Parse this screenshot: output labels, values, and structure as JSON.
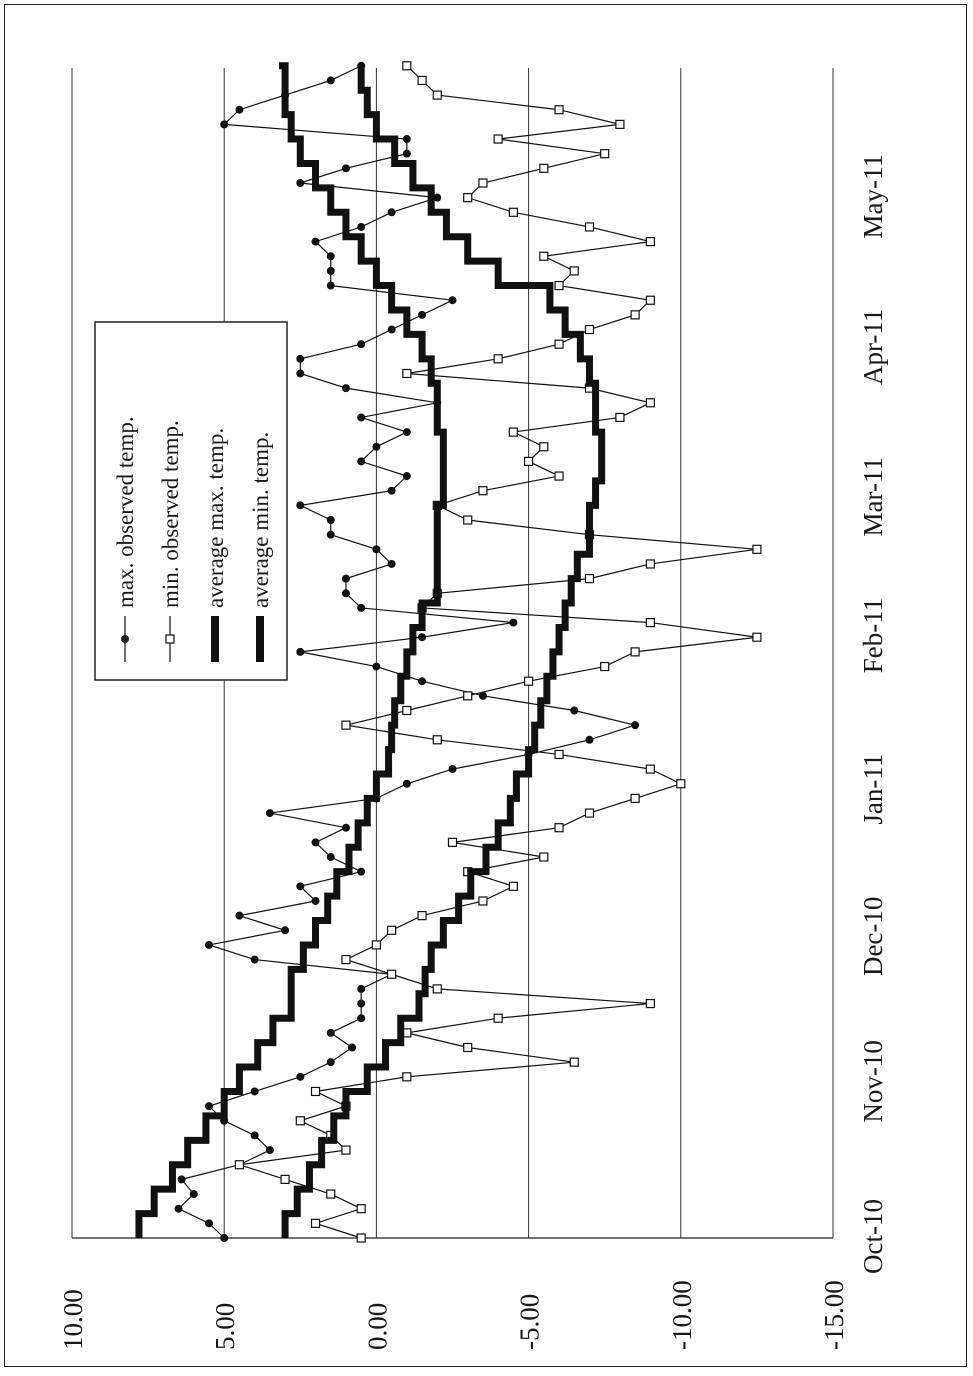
{
  "chart_data": {
    "type": "line",
    "title": "",
    "xlabel": "",
    "ylabel": "",
    "ylim": [
      -15,
      10
    ],
    "yticks": [
      10,
      5,
      0,
      -5,
      -10,
      -15
    ],
    "ytick_labels": [
      "10.00",
      "5.00",
      "0.00",
      "-5.00",
      "-10.00",
      "-15.00"
    ],
    "xlim": [
      "2010-10-01",
      "2011-05-31"
    ],
    "xticks": [
      "2010-10-01",
      "2010-11-01",
      "2010-12-01",
      "2011-01-01",
      "2011-02-01",
      "2011-03-01",
      "2011-04-01",
      "2011-05-01"
    ],
    "xtick_labels": [
      "Oct-10",
      "Nov-10",
      "Dec-10",
      "Jan-11",
      "Feb-11",
      "Mar-11",
      "Apr-11",
      "May-11"
    ],
    "grid": "horizontal",
    "legend_position": "top-left",
    "orientation": "rotated 90° counter-clockwise (date axis runs bottom to top, temperature axis runs left to right)",
    "series": [
      {
        "name": "max. observed temp.",
        "style": "thin line with filled circle markers",
        "x": [
          "2010-10-01",
          "2010-10-04",
          "2010-10-07",
          "2010-10-10",
          "2010-10-13",
          "2010-10-16",
          "2010-10-19",
          "2010-10-22",
          "2010-10-25",
          "2010-10-28",
          "2010-10-31",
          "2010-11-03",
          "2010-11-06",
          "2010-11-09",
          "2010-11-12",
          "2010-11-15",
          "2010-11-18",
          "2010-11-21",
          "2010-11-24",
          "2010-11-27",
          "2010-11-30",
          "2010-12-03",
          "2010-12-06",
          "2010-12-09",
          "2010-12-12",
          "2010-12-15",
          "2010-12-18",
          "2010-12-21",
          "2010-12-24",
          "2010-12-27",
          "2010-12-30",
          "2011-01-02",
          "2011-01-05",
          "2011-01-08",
          "2011-01-11",
          "2011-01-14",
          "2011-01-17",
          "2011-01-20",
          "2011-01-23",
          "2011-01-26",
          "2011-01-29",
          "2011-02-01",
          "2011-02-04",
          "2011-02-07",
          "2011-02-10",
          "2011-02-13",
          "2011-02-16",
          "2011-02-19",
          "2011-02-22",
          "2011-02-25",
          "2011-02-28",
          "2011-03-03",
          "2011-03-06",
          "2011-03-09",
          "2011-03-12",
          "2011-03-15",
          "2011-03-18",
          "2011-03-21",
          "2011-03-24",
          "2011-03-27",
          "2011-03-30",
          "2011-04-02",
          "2011-04-05",
          "2011-04-08",
          "2011-04-11",
          "2011-04-14",
          "2011-04-17",
          "2011-04-20",
          "2011-04-23",
          "2011-04-26",
          "2011-04-29",
          "2011-05-02",
          "2011-05-05",
          "2011-05-08",
          "2011-05-11",
          "2011-05-14",
          "2011-05-17",
          "2011-05-20",
          "2011-05-23",
          "2011-05-26",
          "2011-05-29"
        ],
        "y": [
          5.0,
          5.5,
          6.5,
          6.0,
          6.4,
          4.5,
          3.5,
          4.0,
          5.0,
          5.5,
          4.0,
          2.5,
          1.5,
          0.8,
          1.5,
          0.5,
          0.5,
          0.5,
          -0.5,
          4.0,
          5.5,
          3.0,
          4.5,
          2.0,
          2.5,
          0.5,
          1.5,
          2.0,
          1.0,
          3.5,
          0.0,
          -1.0,
          -2.5,
          -5.0,
          -7.0,
          -8.5,
          -6.5,
          -3.5,
          -1.5,
          0.0,
          2.5,
          -1.5,
          -4.5,
          0.5,
          1.0,
          1.0,
          -0.5,
          0.0,
          1.5,
          1.5,
          2.5,
          -0.5,
          -1.0,
          0.5,
          0.0,
          -1.0,
          0.5,
          -2.0,
          1.0,
          2.5,
          2.5,
          0.5,
          -0.5,
          -1.5,
          -2.5,
          1.5,
          1.5,
          1.5,
          2.0,
          0.5,
          -0.5,
          -2.0,
          2.5,
          1.0,
          -1.0,
          -1.0,
          5.0,
          4.5,
          3.0,
          1.5,
          0.5
        ]
      },
      {
        "name": "min. observed temp.",
        "style": "thin line with open square markers",
        "x": [
          "2010-10-01",
          "2010-10-04",
          "2010-10-07",
          "2010-10-10",
          "2010-10-13",
          "2010-10-16",
          "2010-10-19",
          "2010-10-22",
          "2010-10-25",
          "2010-10-28",
          "2010-10-31",
          "2010-11-03",
          "2010-11-06",
          "2010-11-09",
          "2010-11-12",
          "2010-11-15",
          "2010-11-18",
          "2010-11-21",
          "2010-11-24",
          "2010-11-27",
          "2010-11-30",
          "2010-12-03",
          "2010-12-06",
          "2010-12-09",
          "2010-12-12",
          "2010-12-15",
          "2010-12-18",
          "2010-12-21",
          "2010-12-24",
          "2010-12-27",
          "2010-12-30",
          "2011-01-02",
          "2011-01-05",
          "2011-01-08",
          "2011-01-11",
          "2011-01-14",
          "2011-01-17",
          "2011-01-20",
          "2011-01-23",
          "2011-01-26",
          "2011-01-29",
          "2011-02-01",
          "2011-02-04",
          "2011-02-07",
          "2011-02-10",
          "2011-02-13",
          "2011-02-16",
          "2011-02-19",
          "2011-02-22",
          "2011-02-25",
          "2011-02-28",
          "2011-03-03",
          "2011-03-06",
          "2011-03-09",
          "2011-03-12",
          "2011-03-15",
          "2011-03-18",
          "2011-03-21",
          "2011-03-24",
          "2011-03-27",
          "2011-03-30",
          "2011-04-02",
          "2011-04-05",
          "2011-04-08",
          "2011-04-11",
          "2011-04-14",
          "2011-04-17",
          "2011-04-20",
          "2011-04-23",
          "2011-04-26",
          "2011-04-29",
          "2011-05-02",
          "2011-05-05",
          "2011-05-08",
          "2011-05-11",
          "2011-05-14",
          "2011-05-17",
          "2011-05-20",
          "2011-05-23",
          "2011-05-26",
          "2011-05-29"
        ],
        "y": [
          0.5,
          2.0,
          0.5,
          1.5,
          3.0,
          4.5,
          1.0,
          1.5,
          2.5,
          1.0,
          2.0,
          -1.0,
          -6.5,
          -3.0,
          -1.0,
          -4.0,
          -9.0,
          -2.0,
          -0.5,
          1.0,
          0.0,
          -0.5,
          -1.5,
          -3.5,
          -4.5,
          -3.0,
          -5.5,
          -2.5,
          -6.0,
          -7.0,
          -8.5,
          -10.0,
          -9.0,
          -6.0,
          -2.0,
          1.0,
          -1.0,
          -3.0,
          -5.0,
          -7.5,
          -8.5,
          -12.5,
          -9.0,
          -1.5,
          -2.0,
          -7.0,
          -9.0,
          -12.5,
          -7.0,
          -3.0,
          -2.0,
          -3.5,
          -6.0,
          -5.0,
          -5.5,
          -4.5,
          -8.0,
          -9.0,
          -7.0,
          -1.0,
          -4.0,
          -6.0,
          -7.0,
          -8.5,
          -9.0,
          -6.0,
          -6.5,
          -5.5,
          -9.0,
          -7.0,
          -4.5,
          -3.0,
          -3.5,
          -5.5,
          -7.5,
          -4.0,
          -8.0,
          -6.0,
          -2.0,
          -1.5,
          -1.0
        ]
      },
      {
        "name": "average max. temp.",
        "style": "thick stepped line",
        "x": [
          "2010-10-01",
          "2010-10-06",
          "2010-10-11",
          "2010-10-16",
          "2010-10-21",
          "2010-10-26",
          "2010-10-31",
          "2010-11-05",
          "2010-11-10",
          "2010-11-15",
          "2010-11-20",
          "2010-11-25",
          "2010-11-30",
          "2010-12-05",
          "2010-12-10",
          "2010-12-15",
          "2010-12-20",
          "2010-12-25",
          "2010-12-30",
          "2011-01-04",
          "2011-01-09",
          "2011-01-14",
          "2011-01-19",
          "2011-01-24",
          "2011-01-29",
          "2011-02-03",
          "2011-02-08",
          "2011-02-13",
          "2011-02-18",
          "2011-02-23",
          "2011-02-28",
          "2011-03-05",
          "2011-03-10",
          "2011-03-15",
          "2011-03-20",
          "2011-03-25",
          "2011-03-30",
          "2011-04-04",
          "2011-04-09",
          "2011-04-14",
          "2011-04-19",
          "2011-04-24",
          "2011-04-29",
          "2011-05-04",
          "2011-05-09",
          "2011-05-14",
          "2011-05-19",
          "2011-05-24",
          "2011-05-29"
        ],
        "y": [
          7.8,
          7.3,
          6.7,
          6.2,
          5.6,
          5.0,
          4.5,
          3.9,
          3.4,
          2.8,
          2.8,
          2.4,
          2.0,
          1.6,
          1.3,
          0.9,
          0.6,
          0.3,
          0.0,
          -0.4,
          -0.5,
          -0.6,
          -0.8,
          -1.0,
          -1.2,
          -1.5,
          -2.0,
          -2.0,
          -2.0,
          -2.0,
          -2.2,
          -2.2,
          -2.2,
          -2.0,
          -2.0,
          -1.8,
          -1.5,
          -1.0,
          -0.5,
          0.0,
          0.5,
          1.0,
          1.5,
          2.0,
          2.5,
          2.8,
          3.0,
          3.0,
          3.2
        ]
      },
      {
        "name": "average min. temp.",
        "style": "thick stepped line",
        "x": [
          "2010-10-01",
          "2010-10-06",
          "2010-10-11",
          "2010-10-16",
          "2010-10-21",
          "2010-10-26",
          "2010-10-31",
          "2010-11-05",
          "2010-11-10",
          "2010-11-15",
          "2010-11-20",
          "2010-11-25",
          "2010-11-30",
          "2010-12-05",
          "2010-12-10",
          "2010-12-15",
          "2010-12-20",
          "2010-12-25",
          "2010-12-30",
          "2011-01-04",
          "2011-01-09",
          "2011-01-14",
          "2011-01-19",
          "2011-01-24",
          "2011-01-29",
          "2011-02-03",
          "2011-02-08",
          "2011-02-13",
          "2011-02-18",
          "2011-02-23",
          "2011-02-28",
          "2011-03-05",
          "2011-03-10",
          "2011-03-15",
          "2011-03-20",
          "2011-03-25",
          "2011-03-30",
          "2011-04-04",
          "2011-04-09",
          "2011-04-14",
          "2011-04-19",
          "2011-04-24",
          "2011-04-29",
          "2011-05-04",
          "2011-05-09",
          "2011-05-14",
          "2011-05-19",
          "2011-05-24",
          "2011-05-29"
        ],
        "y": [
          3.0,
          2.6,
          2.2,
          1.8,
          1.4,
          1.0,
          0.3,
          -0.3,
          -0.8,
          -1.4,
          -1.6,
          -1.8,
          -2.2,
          -2.7,
          -3.1,
          -3.6,
          -4.0,
          -4.4,
          -4.6,
          -5.0,
          -5.2,
          -5.4,
          -5.6,
          -5.8,
          -6.0,
          -6.2,
          -6.4,
          -6.6,
          -7.0,
          -7.0,
          -7.2,
          -7.4,
          -7.4,
          -7.2,
          -7.2,
          -7.0,
          -6.7,
          -6.2,
          -5.7,
          -4.0,
          -3.0,
          -2.3,
          -1.8,
          -1.2,
          -0.6,
          0.0,
          0.3,
          0.5,
          0.5
        ]
      }
    ]
  }
}
